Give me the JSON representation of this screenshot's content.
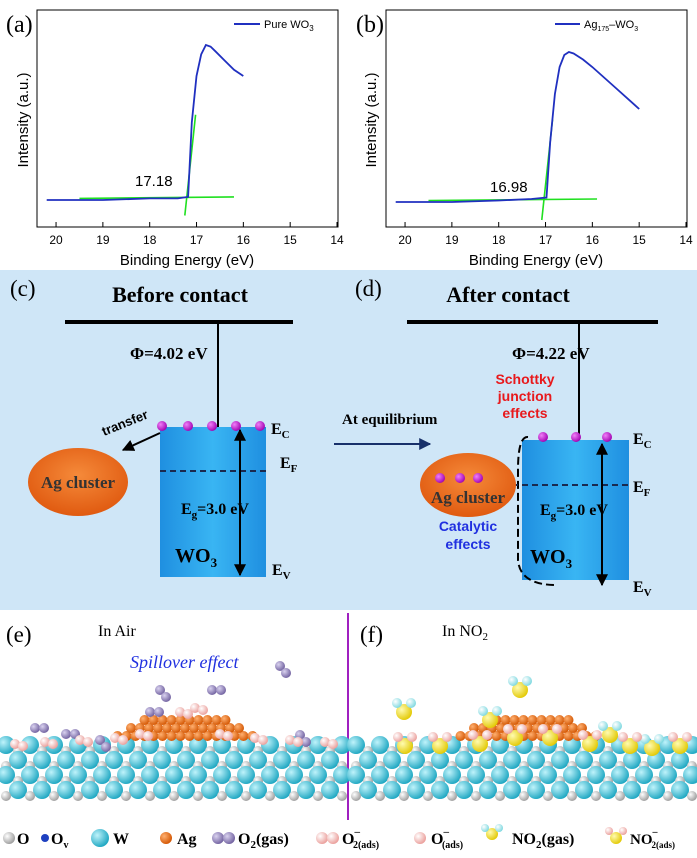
{
  "panel_a": {
    "label": "(a)",
    "legend": "Pure WO",
    "legend_sub": "3",
    "ylabel": "Intensity (a.u.)",
    "xlabel": "Binding Energy (eV)",
    "annotation": "17.18",
    "chart_data": {
      "type": "line",
      "xlim": [
        20.3,
        14
      ],
      "xticks": [
        "20",
        "19",
        "18",
        "17",
        "16",
        "15",
        "14"
      ],
      "series": [
        {
          "name": "Pure WO3",
          "color": "#2030c0",
          "x": [
            20.2,
            19.0,
            18.0,
            17.4,
            17.18,
            17.1,
            17.0,
            16.9,
            16.8,
            16.7,
            16.6,
            16.4,
            16.2,
            16.0
          ],
          "y": [
            0.0,
            0.0,
            0.01,
            0.01,
            0.02,
            0.5,
            0.8,
            0.94,
            1.0,
            0.99,
            0.96,
            0.9,
            0.84,
            0.8
          ]
        }
      ],
      "fits": [
        {
          "color": "#20e020",
          "x": [
            19.5,
            16.2
          ],
          "y": [
            0.01,
            0.02
          ]
        },
        {
          "color": "#20e020",
          "x": [
            17.25,
            17.02
          ],
          "y": [
            -0.1,
            0.55
          ]
        }
      ]
    }
  },
  "panel_b": {
    "label": "(b)",
    "legend": "Ag",
    "legend_sub": "175",
    "legend_tail": "–WO",
    "legend_sub2": "3",
    "ylabel": "Intensity (a.u.)",
    "xlabel": "Binding Energy (eV)",
    "annotation": "16.98",
    "chart_data": {
      "type": "line",
      "xlim": [
        20.3,
        14
      ],
      "xticks": [
        "20",
        "19",
        "18",
        "17",
        "16",
        "15",
        "14"
      ],
      "series": [
        {
          "name": "Ag175–WO3",
          "color": "#2030c0",
          "x": [
            20.2,
            19.0,
            18.0,
            17.3,
            16.98,
            16.9,
            16.8,
            16.7,
            16.6,
            16.5,
            16.4,
            16.2,
            16.0,
            15.5,
            15.0
          ],
          "y": [
            0.0,
            0.0,
            0.01,
            0.02,
            0.03,
            0.4,
            0.72,
            0.9,
            0.98,
            1.0,
            0.99,
            0.95,
            0.9,
            0.76,
            0.62
          ]
        }
      ],
      "fits": [
        {
          "color": "#20e020",
          "x": [
            19.5,
            15.9
          ],
          "y": [
            0.01,
            0.02
          ]
        },
        {
          "color": "#20e020",
          "x": [
            17.08,
            16.85
          ],
          "y": [
            -0.12,
            0.55
          ]
        }
      ]
    }
  },
  "panel_c": {
    "label": "(c)",
    "title": "Before contact",
    "phi": "Φ=4.02 eV",
    "transfer": "transfer",
    "ag": "Ag cluster",
    "eg": "E",
    "eg_sub": "g",
    "eg_tail": "=3.0 eV",
    "wo": "WO",
    "wo_sub": "3",
    "ec": "E",
    "ec_sub": "C",
    "ef": "E",
    "ef_sub": "F",
    "ev": "E",
    "ev_sub": "V"
  },
  "equilibrium": "At equilibrium",
  "panel_d": {
    "label": "(d)",
    "title": "After contact",
    "phi": "Φ=4.22 eV",
    "schottky": [
      "Schottky",
      "junction",
      "effects"
    ],
    "catalytic": [
      "Catalytic",
      "effects"
    ],
    "ag": "Ag cluster",
    "eg": "E",
    "eg_sub": "g",
    "eg_tail": "=3.0 eV",
    "wo": "WO",
    "wo_sub": "3",
    "ec": "E",
    "ec_sub": "C",
    "ef": "E",
    "ef_sub": "F",
    "ev": "E",
    "ev_sub": "V"
  },
  "panel_e": {
    "label": "(e)",
    "title": "In Air",
    "spillover": "Spillover effect"
  },
  "panel_f": {
    "label": "(f)",
    "title": "In NO",
    "title_sub": "2"
  },
  "legend_items": [
    {
      "label": "O"
    },
    {
      "label": "O",
      "sub": "v"
    },
    {
      "label": "W"
    },
    {
      "label": "Ag"
    },
    {
      "label": "O",
      "sub": "2",
      "tail": "(gas)"
    },
    {
      "label": "O",
      "sup": "–",
      "sub": "2(ads)"
    },
    {
      "label": "O",
      "sup": "–",
      "sub": "(ads)"
    },
    {
      "label": "NO",
      "sub": "2",
      "tail": "(gas)"
    },
    {
      "label": "NO",
      "sup": "–",
      "sub": "2(ads)"
    }
  ],
  "colors": {
    "curve": "#2030c0",
    "fit": "#20e020",
    "diagram_bg": "#cfe6f7",
    "wo3": "#29a9ee",
    "ag": "#e96a1e",
    "electron": "#c51ad0",
    "oxygen_gas": "#8a7bb0",
    "oxygen_ads": "#f4b6b3",
    "tungsten": "#3dc4d8",
    "no2": "#f3e000",
    "schottky": "#e8191c",
    "catalytic": "#2030e0",
    "divider": "#a020c0"
  }
}
